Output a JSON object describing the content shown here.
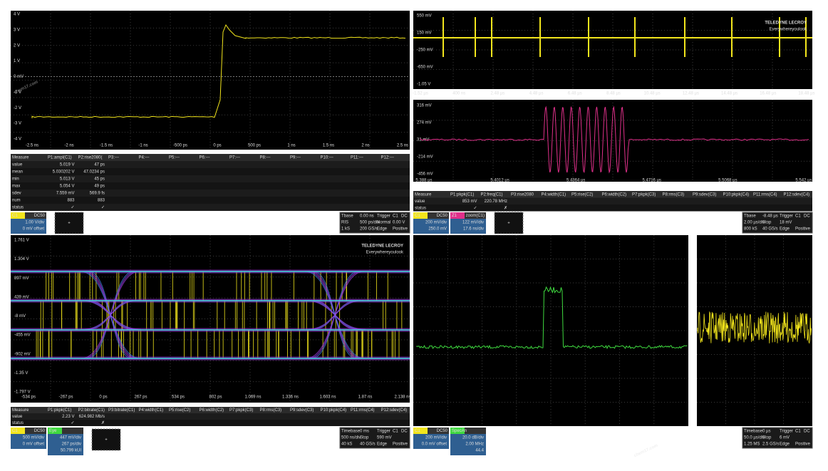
{
  "watermark": [
    "chem17.com",
    "chem17.com"
  ],
  "logo": {
    "brand": "TELEDYNE LECROY",
    "slogan": "Everywhereyoulook"
  },
  "panel_top_left": {
    "y_labels": [
      "4 V",
      "3 V",
      "2 V",
      "1 V",
      "0 mV",
      "-1 V",
      "-2 V",
      "-3 V",
      "-4 V"
    ],
    "x_labels": [
      "-2.5 ns",
      "-2 ns",
      "-1.5 ns",
      "-1 ns",
      "-500 ps",
      "0 ps",
      "500 ps",
      "1 ns",
      "1.5 ns",
      "2 ns",
      "2.5 ns"
    ],
    "measure": {
      "header": [
        "Measure",
        "P1:ampl(C1)",
        "P2:rise2080(",
        "P3:---",
        "P4:---",
        "P5:---",
        "P6:---",
        "P7:---",
        "P8:---",
        "P9:---",
        "P10:---",
        "P11:---",
        "P12:---"
      ],
      "rows": [
        [
          "value",
          "5.019 V",
          "47 ps"
        ],
        [
          "mean",
          "5.030202 V",
          "47.0234 ps"
        ],
        [
          "min",
          "5.013 V",
          "45 ps"
        ],
        [
          "max",
          "5.054 V",
          "49 ps"
        ],
        [
          "sdev",
          "7.559 mV",
          "569.9 fs"
        ],
        [
          "num",
          "883",
          "883"
        ],
        [
          "status",
          "✓",
          "✓"
        ]
      ]
    },
    "channels": [
      {
        "label": "C1",
        "coupling": "DC50",
        "color": "#f2e51c",
        "lines": [
          "1.00 V/div",
          "0 mV offset"
        ]
      }
    ],
    "add": "+",
    "timebase": [
      [
        "Tbase",
        "0.00 ns",
        "Trigger",
        "C1",
        "DC"
      ],
      [
        "RIS",
        "500 ps/div",
        "Normal",
        "0.00 V"
      ],
      [
        "1 kS",
        "200 GS/s",
        "Edge",
        "Positive"
      ]
    ]
  },
  "panel_top_right": {
    "y_labels": [
      "550 mV",
      "150 mV",
      "-250 mV",
      "-650 mV",
      "-1.05 V"
    ],
    "x_labels": [
      "-1.52 µs",
      "400 ns",
      "2.48 µs",
      "4.48 µs",
      "6.48 µs",
      "8.48 µs",
      "10.48 µs",
      "12.48 µs",
      "14.48 µs",
      "16.48 µs",
      "18.48 µs"
    ],
    "zoom_y_labels": [
      "316 mV",
      "274 mV",
      "31 mV",
      "-214 mV",
      "-456 mV"
    ],
    "zoom_x_labels": [
      "5.388 µs",
      "5.4012 µs",
      "5.4364 µs",
      "5.4716 µs",
      "5.5068 µs",
      "5.542 µs"
    ],
    "measure": {
      "header": [
        "Measure",
        "P1:pkpk(C1)",
        "P2:freq(C1)",
        "P3:rise2080",
        "P4:width(C1)",
        "P5:rise(C2)",
        "P6:width(C2)",
        "P7:pkpk(C3)",
        "P8:rms(C3)",
        "P9:sdev(C3)",
        "P10:pkpk(C4)",
        "P11:rms(C4)",
        "P12:sdev(C4)"
      ],
      "rows": [
        [
          "value",
          "853 mV",
          "220.78 MHz"
        ],
        [
          "status",
          "✓",
          "✗"
        ]
      ]
    },
    "channels": [
      {
        "label": "C1",
        "coupling": "DC50",
        "color": "#f2e51c",
        "lines": [
          "200 mV/div",
          "250.0 mV"
        ]
      },
      {
        "label": "Z1",
        "coupling": "zoom(C1)",
        "color": "#e0308a",
        "lines": [
          "122 mV/div",
          "17.6 ns/div"
        ]
      }
    ],
    "add": "+",
    "timebase": [
      [
        "Tbase",
        "-8.48 µs",
        "Trigger",
        "C1",
        "DC"
      ],
      [
        "2.00 µs/div",
        "Stop",
        "18 mV"
      ],
      [
        "800 kS",
        "40 GS/s",
        "Edge",
        "Positive"
      ]
    ]
  },
  "panel_bottom_left": {
    "y_labels": [
      "1.761 V",
      "1.304 V",
      "897 mV",
      "439 mV",
      "-8 mV",
      "-455 mV",
      "-902 mV",
      "-1.35 V",
      "-1.797 V"
    ],
    "x_labels": [
      "-534 ps",
      "-267 ps",
      "0 ps",
      "267 ps",
      "534 ps",
      "802 ps",
      "1.069 ns",
      "1.336 ns",
      "1.603 ns",
      "1.87 ns",
      "2.138 ns"
    ],
    "measure": {
      "header": [
        "Measure",
        "P1:pkpk(C1)",
        "P2:bitrate(C1)",
        "P3:bitrate(C1)",
        "P4:width(C1)",
        "P5:rise(C2)",
        "P6:width(C2)",
        "P7:pkpk(C3)",
        "P8:rms(C3)",
        "P9:sdev(C3)",
        "P10:pkpk(C4)",
        "P11:rms(C4)",
        "P12:sdev(C4)"
      ],
      "rows": [
        [
          "value",
          "2.23 V",
          "624.982 Mb/s"
        ],
        [
          "status",
          "✓",
          "✗"
        ]
      ]
    },
    "channels": [
      {
        "label": "C1",
        "coupling": "DC50",
        "color": "#f2e51c",
        "lines": [
          "500 mV/div",
          "0 mV offset"
        ]
      },
      {
        "label": "Eye",
        "coupling": "",
        "color": "#3fd93f",
        "lines": [
          "447 mV/div",
          "267 ps/div",
          "50.799 kUI"
        ]
      }
    ],
    "add": "+",
    "timebase": [
      [
        "Timebase",
        "0 ms",
        "Trigger",
        "C1",
        "DC"
      ],
      [
        "500 ns/div",
        "Stop",
        "590 mV"
      ],
      [
        "40 kS",
        "40 GS/s",
        "Edge",
        "Positive"
      ]
    ]
  },
  "panel_bottom_right": {
    "channels": [
      {
        "label": "C1",
        "coupling": "DC50",
        "color": "#f2e51c",
        "lines": [
          "200 mV/div",
          "0.0 mV offset"
        ]
      },
      {
        "label": "SpecAn",
        "coupling": "",
        "color": "#3fd93f",
        "lines": [
          "20.0 dB/div",
          "2.00 MHz",
          "44.4"
        ]
      }
    ],
    "timebase": [
      [
        "Timebase",
        "0 µs",
        "Trigger",
        "C1",
        "DC"
      ],
      [
        "50.0 µs/div",
        "Stop",
        "6 mV"
      ],
      [
        "1.25 MS",
        "2.5 GS/s",
        "Edge",
        "Positive"
      ]
    ]
  }
}
